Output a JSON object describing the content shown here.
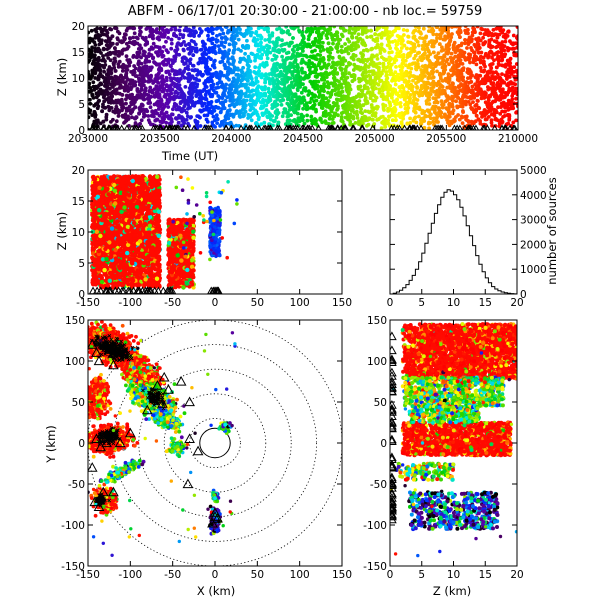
{
  "chart_data": [
    {
      "id": "timeline",
      "type": "scatter",
      "title": "ABFM - 06/17/01 20:30:00 - 21:00:00 - nb loc.=  59759",
      "xlabel": "Time (UT)",
      "ylabel": "Z (km)",
      "xlim": [
        203000,
        210000
      ],
      "ylim": [
        0,
        20
      ],
      "xticks": [
        "203000",
        "203500",
        "204000",
        "204500",
        "205000",
        "205500",
        "210000"
      ],
      "yticks": [
        "0",
        "5",
        "10",
        "15",
        "20"
      ],
      "color_encoding": "time (rainbow: black-purple-blue-cyan-green-yellow-orange-red)",
      "ground_markers": "triangles"
    },
    {
      "id": "xz",
      "type": "scatter",
      "xlabel": "",
      "ylabel": "Z (km)",
      "xlim": [
        -150,
        150
      ],
      "ylim": [
        0,
        20
      ],
      "xticks": [
        "-150",
        "-100",
        "-50",
        "0",
        "50",
        "100",
        "150"
      ],
      "yticks": [
        "0",
        "5",
        "10",
        "15",
        "20"
      ],
      "clusters": [
        {
          "x": [
            -145,
            -65
          ],
          "z": [
            1,
            19
          ],
          "dominant": "red"
        },
        {
          "x": [
            -55,
            -25
          ],
          "z": [
            1,
            12
          ],
          "dominant": "red"
        },
        {
          "x": [
            -6,
            6
          ],
          "z": [
            6,
            14
          ],
          "dominant": "blue"
        }
      ]
    },
    {
      "id": "histogram",
      "type": "bar",
      "xlabel": "",
      "ylabel": "number of sources",
      "xlim": [
        0,
        20
      ],
      "ylim": [
        0,
        5000
      ],
      "xticks": [
        "0",
        "5",
        "10",
        "15",
        "20"
      ],
      "yticks": [
        "0",
        "1000",
        "2000",
        "3000",
        "4000",
        "5000"
      ],
      "bin_width": 0.5,
      "bin_start": 0,
      "values": [
        0,
        30,
        80,
        150,
        250,
        380,
        550,
        750,
        1000,
        1300,
        1650,
        2050,
        2450,
        2850,
        3250,
        3600,
        3900,
        4100,
        4200,
        4150,
        4000,
        3800,
        3500,
        3150,
        2750,
        2350,
        1950,
        1550,
        1200,
        900,
        650,
        450,
        300,
        200,
        130,
        80,
        50,
        30,
        15,
        5
      ]
    },
    {
      "id": "xy",
      "type": "scatter",
      "xlabel": "X (km)",
      "ylabel": "Y (km)",
      "xlim": [
        -150,
        150
      ],
      "ylim": [
        -150,
        150
      ],
      "xticks": [
        "-150",
        "-100",
        "-50",
        "0",
        "50",
        "100",
        "150"
      ],
      "yticks": [
        "-150",
        "-100",
        "-50",
        "0",
        "50",
        "100",
        "150"
      ],
      "range_rings_km": [
        30,
        60,
        90,
        120,
        150
      ],
      "range_rings_style": "dotted",
      "inner_ring_style": "solid"
    },
    {
      "id": "zy",
      "type": "scatter",
      "xlabel": "Z (km)",
      "ylabel": "",
      "xlim": [
        0,
        20
      ],
      "ylim": [
        -150,
        150
      ],
      "xticks": [
        "0",
        "5",
        "10",
        "15",
        "20"
      ],
      "yticks": [
        "-150",
        "-100",
        "-50",
        "0",
        "50",
        "100",
        "150"
      ]
    }
  ]
}
